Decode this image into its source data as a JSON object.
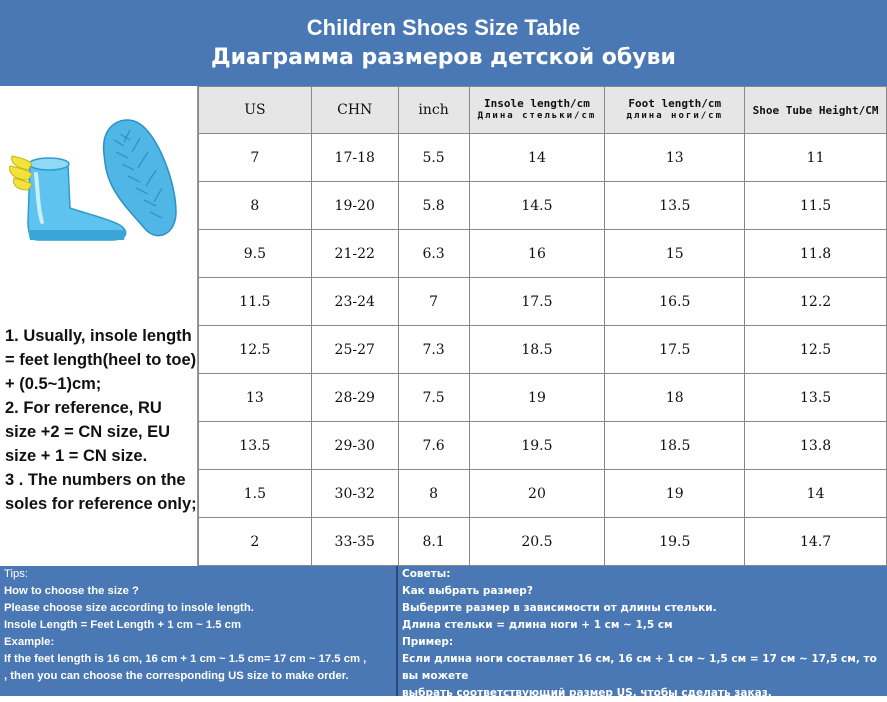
{
  "header": {
    "title_en": "Children Shoes Size Table",
    "title_ru": "Диаграмма размеров детской обуви"
  },
  "notes": [
    "1. Usually, insole length = feet length(heel to toe) + (0.5~1)cm;",
    "2. For reference, RU size +2 = CN size, EU size + 1 = CN size.",
    "3 . The numbers on the soles for reference only;"
  ],
  "table": {
    "headers": {
      "us": "US",
      "chn": "CHN",
      "inch": "inch",
      "insole_en": "Insole length/cm",
      "insole_ru": "Длина стельки/cm",
      "foot_en": "Foot length/cm",
      "foot_ru": "длина ноги/cm",
      "tube": "Shoe Tube Height/CM"
    },
    "rows": [
      {
        "us": "7",
        "chn": "17-18",
        "inch": "5.5",
        "insole": "14",
        "foot": "13",
        "tube": "11"
      },
      {
        "us": "8",
        "chn": "19-20",
        "inch": "5.8",
        "insole": "14.5",
        "foot": "13.5",
        "tube": "11.5"
      },
      {
        "us": "9.5",
        "chn": "21-22",
        "inch": "6.3",
        "insole": "16",
        "foot": "15",
        "tube": "11.8"
      },
      {
        "us": "11.5",
        "chn": "23-24",
        "inch": "7",
        "insole": "17.5",
        "foot": "16.5",
        "tube": "12.2"
      },
      {
        "us": "12.5",
        "chn": "25-27",
        "inch": "7.3",
        "insole": "18.5",
        "foot": "17.5",
        "tube": "12.5"
      },
      {
        "us": "13",
        "chn": "28-29",
        "inch": "7.5",
        "insole": "19",
        "foot": "18",
        "tube": "13.5"
      },
      {
        "us": "13.5",
        "chn": "29-30",
        "inch": "7.6",
        "insole": "19.5",
        "foot": "18.5",
        "tube": "13.8"
      },
      {
        "us": "1.5",
        "chn": "30-32",
        "inch": "8",
        "insole": "20",
        "foot": "19",
        "tube": "14"
      },
      {
        "us": "2",
        "chn": "33-35",
        "inch": "8.1",
        "insole": "20.5",
        "foot": "19.5",
        "tube": "14.7"
      }
    ]
  },
  "tips_en": [
    "Tips:",
    "How to choose the size ?",
    "Please choose size according to insole length.",
    "Insole Length = Feet Length + 1 cm ~ 1.5 cm",
    "Example:",
    "If the feet length is 16 cm, 16 cm + 1 cm ~ 1.5 cm= 17 cm ~ 17.5 cm ,",
    ", then you can choose the corresponding US size to make order."
  ],
  "tips_ru": [
    "Советы:",
    "Как выбрать размер?",
    "Выберите размер в зависимости от длины стельки.",
    "Длина стельки = длина ноги + 1 см ~ 1,5 см",
    "Пример:",
    "Если длина ноги составляет 16 см, 16 см + 1 см ~ 1,5 см = 17 см ~ 17,5 см, то вы можете",
    "выбрать соответствующий размер US, чтобы сделать заказ."
  ],
  "colors": {
    "header_bg": "#4a78b4",
    "boot": "#5ec3ee",
    "wing": "#f2e23a"
  }
}
